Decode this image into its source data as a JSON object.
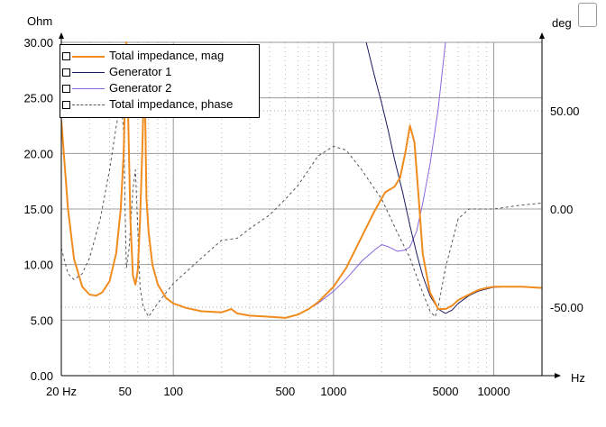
{
  "chart_data": {
    "type": "line",
    "left_axis_unit": "Ohm",
    "right_axis_unit": "deg",
    "x_axis_unit": "Hz",
    "x_scale": "log",
    "xlim": [
      20,
      20000
    ],
    "ylim_left": [
      0,
      30
    ],
    "ylim_right": [
      -85,
      85
    ],
    "grid": true,
    "legend_position": "top-left",
    "left_ticks": [
      "0.00",
      "5.00",
      "10.00",
      "15.00",
      "20.00",
      "25.00",
      "30.00"
    ],
    "right_ticks": [
      {
        "value": 50,
        "label": "50.00"
      },
      {
        "value": 0,
        "label": "0.00"
      },
      {
        "value": -50,
        "label": "-50.00"
      }
    ],
    "x_ticks": [
      {
        "value": 20,
        "label": "20 Hz"
      },
      {
        "value": 50,
        "label": "50"
      },
      {
        "value": 100,
        "label": "100"
      },
      {
        "value": 500,
        "label": "500"
      },
      {
        "value": 1000,
        "label": "1000"
      },
      {
        "value": 5000,
        "label": "5000"
      },
      {
        "value": 10000,
        "label": "10000"
      }
    ],
    "series": [
      {
        "name": "Total impedance, mag",
        "axis": "left",
        "color": "#f08c1e",
        "style": "solid",
        "points": [
          [
            20,
            23
          ],
          [
            22,
            15
          ],
          [
            24,
            10.5
          ],
          [
            27,
            8
          ],
          [
            30,
            7.3
          ],
          [
            33,
            7.2
          ],
          [
            36,
            7.5
          ],
          [
            40,
            8.5
          ],
          [
            44,
            11
          ],
          [
            47,
            15
          ],
          [
            49,
            20
          ],
          [
            50,
            25
          ],
          [
            51,
            30
          ],
          [
            52,
            25
          ],
          [
            54,
            14
          ],
          [
            56,
            9
          ],
          [
            58,
            8.2
          ],
          [
            60,
            9.5
          ],
          [
            62,
            14
          ],
          [
            64,
            20
          ],
          [
            66,
            28
          ],
          [
            67,
            22
          ],
          [
            68,
            16
          ],
          [
            70,
            13
          ],
          [
            74,
            10
          ],
          [
            80,
            8.2
          ],
          [
            90,
            7
          ],
          [
            100,
            6.5
          ],
          [
            120,
            6.1
          ],
          [
            150,
            5.8
          ],
          [
            200,
            5.7
          ],
          [
            230,
            6
          ],
          [
            250,
            5.6
          ],
          [
            300,
            5.4
          ],
          [
            400,
            5.3
          ],
          [
            500,
            5.2
          ],
          [
            600,
            5.5
          ],
          [
            700,
            6
          ],
          [
            800,
            6.6
          ],
          [
            1000,
            8
          ],
          [
            1200,
            9.7
          ],
          [
            1500,
            12.5
          ],
          [
            1800,
            14.8
          ],
          [
            2100,
            16.5
          ],
          [
            2400,
            17
          ],
          [
            2600,
            17.8
          ],
          [
            2800,
            20
          ],
          [
            3000,
            22.5
          ],
          [
            3200,
            21
          ],
          [
            3400,
            16
          ],
          [
            3600,
            11
          ],
          [
            4000,
            7.5
          ],
          [
            4500,
            6
          ],
          [
            5000,
            6
          ],
          [
            5500,
            6.3
          ],
          [
            6000,
            6.8
          ],
          [
            7000,
            7.3
          ],
          [
            8000,
            7.7
          ],
          [
            9000,
            7.9
          ],
          [
            10000,
            8
          ],
          [
            12000,
            8
          ],
          [
            15000,
            8
          ],
          [
            20000,
            7.9
          ]
        ]
      },
      {
        "name": "Generator 1",
        "axis": "left",
        "color": "#1a1a5e",
        "style": "solid",
        "points": [
          [
            1600,
            30
          ],
          [
            1800,
            27
          ],
          [
            2000,
            24.5
          ],
          [
            2200,
            22
          ],
          [
            2400,
            19.5
          ],
          [
            2700,
            16.5
          ],
          [
            3000,
            13.5
          ],
          [
            3300,
            11
          ],
          [
            3600,
            9
          ],
          [
            4000,
            7.2
          ],
          [
            4500,
            6
          ],
          [
            5000,
            5.6
          ],
          [
            5500,
            5.9
          ],
          [
            6000,
            6.5
          ],
          [
            7000,
            7.2
          ],
          [
            8000,
            7.6
          ],
          [
            9000,
            7.8
          ],
          [
            10000,
            7.95
          ],
          [
            12000,
            8
          ],
          [
            15000,
            8
          ]
        ]
      },
      {
        "name": "Generator 2",
        "axis": "left",
        "color": "#8866dd",
        "style": "solid",
        "points": [
          [
            500,
            5.2
          ],
          [
            600,
            5.5
          ],
          [
            700,
            6
          ],
          [
            800,
            6.5
          ],
          [
            1000,
            7.6
          ],
          [
            1200,
            8.7
          ],
          [
            1500,
            10.3
          ],
          [
            1800,
            11.3
          ],
          [
            2000,
            11.8
          ],
          [
            2200,
            11.6
          ],
          [
            2500,
            11.2
          ],
          [
            2800,
            11.3
          ],
          [
            3000,
            11.6
          ],
          [
            3300,
            13
          ],
          [
            3600,
            15.5
          ],
          [
            4000,
            19
          ],
          [
            4500,
            24
          ],
          [
            5000,
            30
          ]
        ]
      },
      {
        "name": "Total impedance, phase",
        "axis": "right",
        "color": "#555555",
        "style": "dashed",
        "points": [
          [
            20,
            -20
          ],
          [
            22,
            -33
          ],
          [
            24,
            -36
          ],
          [
            27,
            -33
          ],
          [
            30,
            -25
          ],
          [
            35,
            -5
          ],
          [
            40,
            20
          ],
          [
            44,
            42
          ],
          [
            47,
            55
          ],
          [
            49,
            40
          ],
          [
            50,
            0
          ],
          [
            51,
            -30
          ],
          [
            53,
            -20
          ],
          [
            56,
            10
          ],
          [
            58,
            20
          ],
          [
            60,
            -10
          ],
          [
            62,
            -40
          ],
          [
            65,
            -50
          ],
          [
            70,
            -55
          ],
          [
            80,
            -48
          ],
          [
            100,
            -38
          ],
          [
            150,
            -25
          ],
          [
            200,
            -16
          ],
          [
            250,
            -15
          ],
          [
            300,
            -10
          ],
          [
            400,
            -3
          ],
          [
            500,
            5
          ],
          [
            600,
            12
          ],
          [
            700,
            20
          ],
          [
            800,
            27
          ],
          [
            1000,
            32
          ],
          [
            1200,
            30
          ],
          [
            1500,
            20
          ],
          [
            2000,
            5
          ],
          [
            2500,
            -12
          ],
          [
            3000,
            -25
          ],
          [
            3500,
            -40
          ],
          [
            4000,
            -52
          ],
          [
            4300,
            -55
          ],
          [
            4500,
            -50
          ],
          [
            5000,
            -30
          ],
          [
            6000,
            -5
          ],
          [
            7000,
            0
          ],
          [
            10000,
            0
          ],
          [
            15000,
            2
          ],
          [
            20000,
            3
          ]
        ]
      }
    ]
  }
}
